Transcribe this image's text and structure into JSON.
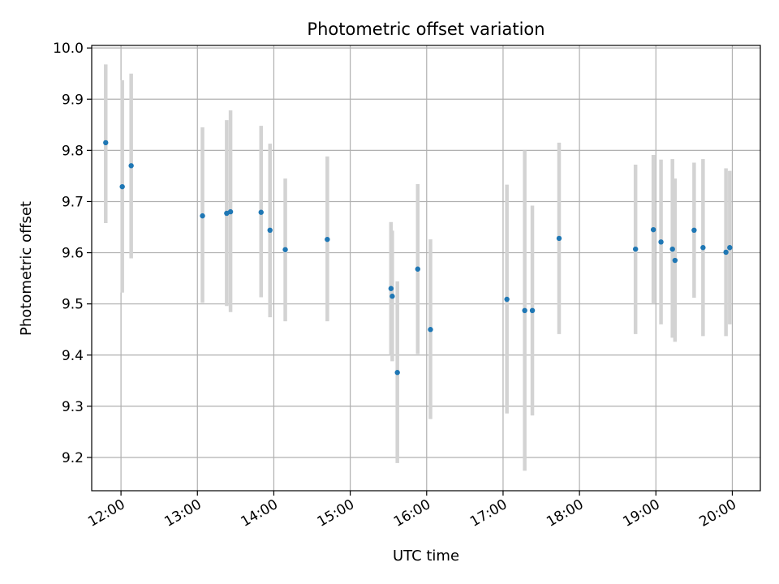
{
  "chart_data": {
    "type": "scatter",
    "title": "Photometric offset variation",
    "xlabel": "UTC time",
    "ylabel": "Photometric offset",
    "x_ticks": [
      "12:00",
      "13:00",
      "14:00",
      "15:00",
      "16:00",
      "17:00",
      "18:00",
      "19:00",
      "20:00"
    ],
    "y_ticks": [
      "9.2",
      "9.3",
      "9.4",
      "9.5",
      "9.6",
      "9.7",
      "9.8",
      "9.9",
      "10.0"
    ],
    "xlim": [
      "11:37",
      "20:22"
    ],
    "ylim": [
      9.135,
      10.005
    ],
    "grid": true,
    "colors": {
      "point": "#1f77b4",
      "errorbar": "#d3d3d3"
    },
    "series": [
      {
        "error_bars": true,
        "points": [
          {
            "x": "11:48",
            "y": 9.815,
            "lo": 9.658,
            "hi": 9.968
          },
          {
            "x": "12:01",
            "y": 9.729,
            "lo": 9.522,
            "hi": 9.937
          },
          {
            "x": "12:08",
            "y": 9.77,
            "lo": 9.589,
            "hi": 9.95
          },
          {
            "x": "13:04",
            "y": 9.672,
            "lo": 9.502,
            "hi": 9.845
          },
          {
            "x": "13:23",
            "y": 9.677,
            "lo": 9.496,
            "hi": 9.859
          },
          {
            "x": "13:26",
            "y": 9.68,
            "lo": 9.484,
            "hi": 9.878
          },
          {
            "x": "13:50",
            "y": 9.679,
            "lo": 9.513,
            "hi": 9.848
          },
          {
            "x": "13:57",
            "y": 9.644,
            "lo": 9.474,
            "hi": 9.813
          },
          {
            "x": "14:09",
            "y": 9.606,
            "lo": 9.466,
            "hi": 9.745
          },
          {
            "x": "14:42",
            "y": 9.626,
            "lo": 9.466,
            "hi": 9.788
          },
          {
            "x": "15:32",
            "y": 9.53,
            "lo": 9.4,
            "hi": 9.66
          },
          {
            "x": "15:33",
            "y": 9.515,
            "lo": 9.388,
            "hi": 9.643
          },
          {
            "x": "15:37",
            "y": 9.366,
            "lo": 9.189,
            "hi": 9.544
          },
          {
            "x": "15:53",
            "y": 9.568,
            "lo": 9.402,
            "hi": 9.734
          },
          {
            "x": "16:03",
            "y": 9.45,
            "lo": 9.275,
            "hi": 9.626
          },
          {
            "x": "17:03",
            "y": 9.509,
            "lo": 9.286,
            "hi": 9.733
          },
          {
            "x": "17:17",
            "y": 9.487,
            "lo": 9.174,
            "hi": 9.8
          },
          {
            "x": "17:23",
            "y": 9.487,
            "lo": 9.282,
            "hi": 9.692
          },
          {
            "x": "17:44",
            "y": 9.628,
            "lo": 9.441,
            "hi": 9.815
          },
          {
            "x": "18:44",
            "y": 9.607,
            "lo": 9.441,
            "hi": 9.772
          },
          {
            "x": "18:58",
            "y": 9.645,
            "lo": 9.5,
            "hi": 9.791
          },
          {
            "x": "19:04",
            "y": 9.621,
            "lo": 9.46,
            "hi": 9.782
          },
          {
            "x": "19:13",
            "y": 9.607,
            "lo": 9.434,
            "hi": 9.783
          },
          {
            "x": "19:15",
            "y": 9.585,
            "lo": 9.426,
            "hi": 9.745
          },
          {
            "x": "19:30",
            "y": 9.644,
            "lo": 9.512,
            "hi": 9.776
          },
          {
            "x": "19:37",
            "y": 9.61,
            "lo": 9.437,
            "hi": 9.783
          },
          {
            "x": "19:55",
            "y": 9.601,
            "lo": 9.437,
            "hi": 9.765
          },
          {
            "x": "19:58",
            "y": 9.61,
            "lo": 9.46,
            "hi": 9.76
          }
        ]
      }
    ]
  }
}
